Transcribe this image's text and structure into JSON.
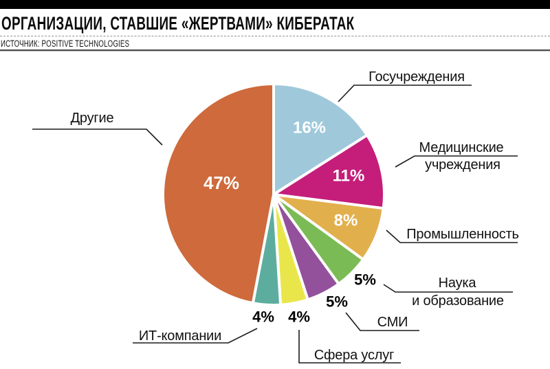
{
  "header": {
    "title": "ОРГАНИЗАЦИИ, СТАВШИЕ «ЖЕРТВАМИ» КИБЕРАТАК",
    "source": "ИСТОЧНИК: POSITIVE TECHNOLOGIES"
  },
  "chart_data": {
    "type": "pie",
    "title": "ОРГАНИЗАЦИИ, СТАВШИЕ «ЖЕРТВАМИ» КИБЕРАТАК",
    "source": "ИСТОЧНИК: POSITIVE TECHNOLOGIES",
    "unit": "%",
    "start_angle_deg": 0,
    "direction": "clockwise",
    "legend_position": "callout-labels",
    "slices": [
      {
        "label": "Госучреждения",
        "label_lines": [
          "Госучреждения"
        ],
        "value": 16,
        "percent_text": "16%",
        "color": "#9fc9db"
      },
      {
        "label": "Медицинские учреждения",
        "label_lines": [
          "Медицинские",
          "учреждения"
        ],
        "value": 11,
        "percent_text": "11%",
        "color": "#c41d7a"
      },
      {
        "label": "Промышленность",
        "label_lines": [
          "Промышленность"
        ],
        "value": 8,
        "percent_text": "8%",
        "color": "#e1b04d"
      },
      {
        "label": "Наука и образование",
        "label_lines": [
          "Наука",
          "и образование"
        ],
        "value": 5,
        "percent_text": "5%",
        "color": "#7bbb55"
      },
      {
        "label": "СМИ",
        "label_lines": [
          "СМИ"
        ],
        "value": 5,
        "percent_text": "5%",
        "color": "#93509b"
      },
      {
        "label": "Сфера услуг",
        "label_lines": [
          "Сфера услуг"
        ],
        "value": 4,
        "percent_text": "4%",
        "color": "#e9e64c"
      },
      {
        "label": "ИТ-компании",
        "label_lines": [
          "ИТ-компании"
        ],
        "value": 4,
        "percent_text": "4%",
        "color": "#5dad9f"
      },
      {
        "label": "Другие",
        "label_lines": [
          "Другие"
        ],
        "value": 47,
        "percent_text": "47%",
        "color": "#ce6a3c"
      }
    ]
  },
  "colors": {
    "background": "#ffffff",
    "top_bar": "#000000",
    "callout_line": "#1a1a1a",
    "inside_label_text": "#ffffff",
    "outside_label_text": "#000000"
  }
}
